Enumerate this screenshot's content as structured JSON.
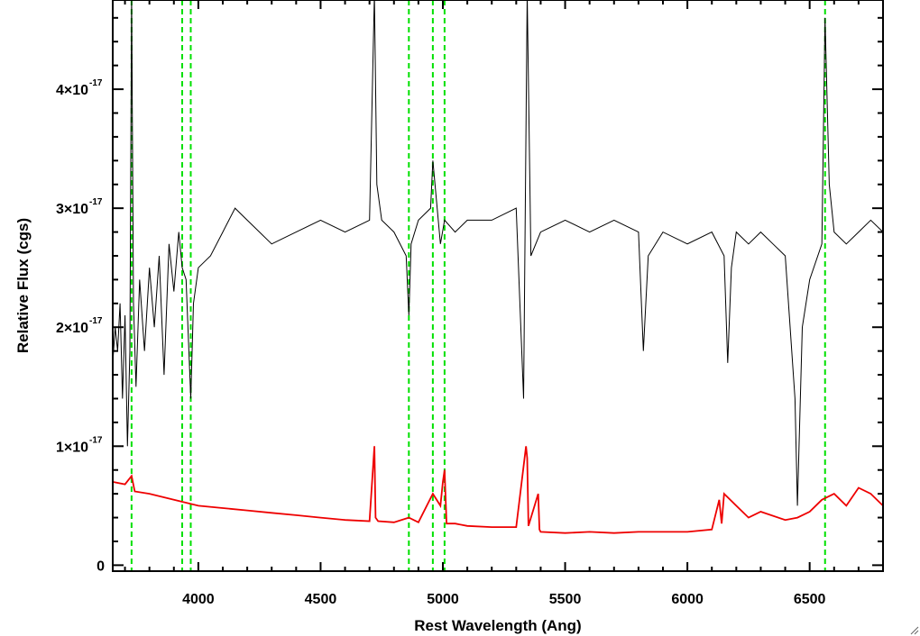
{
  "chart_data": {
    "type": "line",
    "title": "",
    "xlabel": "Rest Wavelength (Ang)",
    "ylabel": "Relative Flux (cgs)",
    "xlim": [
      3650,
      6800
    ],
    "ylim": [
      -0.05,
      4.75
    ],
    "y_scale_note": "×10^-17",
    "x_ticks": [
      {
        "value": 4000,
        "label": "4000"
      },
      {
        "value": 4500,
        "label": "4500"
      },
      {
        "value": 5000,
        "label": "5000"
      },
      {
        "value": 5500,
        "label": "5500"
      },
      {
        "value": 6000,
        "label": "6000"
      },
      {
        "value": 6500,
        "label": "6500"
      }
    ],
    "y_ticks": [
      {
        "value": 0,
        "mantissa": "0",
        "exponent": ""
      },
      {
        "value": 1,
        "mantissa": "1×10",
        "exponent": "-17"
      },
      {
        "value": 2,
        "mantissa": "2×10",
        "exponent": "-17"
      },
      {
        "value": 3,
        "mantissa": "3×10",
        "exponent": "-17"
      },
      {
        "value": 4,
        "mantissa": "4×10",
        "exponent": "-17"
      }
    ],
    "reference_lines": {
      "color": "#00e000",
      "style": "dashed",
      "x": [
        3727,
        3934,
        3969,
        4861,
        4959,
        5007,
        6563
      ]
    },
    "series": [
      {
        "color": "#000000",
        "x": [
          3650,
          3660,
          3670,
          3680,
          3690,
          3700,
          3710,
          3720,
          3727,
          3735,
          3745,
          3760,
          3780,
          3800,
          3820,
          3840,
          3860,
          3880,
          3900,
          3920,
          3934,
          3950,
          3969,
          3980,
          4000,
          4050,
          4100,
          4150,
          4200,
          4250,
          4300,
          4400,
          4500,
          4600,
          4700,
          4720,
          4730,
          4750,
          4800,
          4850,
          4861,
          4870,
          4900,
          4950,
          4959,
          4990,
          5007,
          5050,
          5100,
          5200,
          5300,
          5330,
          5345,
          5360,
          5400,
          5500,
          5600,
          5700,
          5800,
          5820,
          5840,
          5900,
          6000,
          6100,
          6150,
          6165,
          6180,
          6200,
          6250,
          6300,
          6350,
          6400,
          6420,
          6440,
          6450,
          6470,
          6500,
          6550,
          6563,
          6580,
          6600,
          6650,
          6700,
          6750,
          6800
        ],
        "y": [
          1.7,
          2.0,
          1.8,
          2.2,
          1.4,
          2.1,
          1.0,
          1.8,
          4.8,
          2.2,
          1.5,
          2.4,
          1.8,
          2.5,
          2.0,
          2.6,
          1.6,
          2.7,
          2.3,
          2.8,
          2.5,
          2.4,
          1.4,
          2.2,
          2.5,
          2.6,
          2.8,
          3.0,
          2.9,
          2.8,
          2.7,
          2.8,
          2.9,
          2.8,
          2.9,
          4.8,
          3.2,
          2.9,
          2.8,
          2.6,
          2.1,
          2.7,
          2.9,
          3.0,
          3.4,
          2.7,
          2.9,
          2.8,
          2.9,
          2.9,
          3.0,
          1.4,
          4.8,
          2.6,
          2.8,
          2.9,
          2.8,
          2.9,
          2.8,
          1.8,
          2.6,
          2.8,
          2.7,
          2.8,
          2.6,
          1.7,
          2.5,
          2.8,
          2.7,
          2.8,
          2.7,
          2.6,
          2.0,
          1.4,
          0.5,
          2.0,
          2.4,
          2.7,
          4.6,
          3.2,
          2.8,
          2.7,
          2.8,
          2.9,
          2.8
        ]
      },
      {
        "color": "#ee0000",
        "x": [
          3650,
          3700,
          3727,
          3740,
          3800,
          3900,
          4000,
          4100,
          4200,
          4300,
          4400,
          4500,
          4600,
          4700,
          4720,
          4725,
          4735,
          4800,
          4861,
          4900,
          4959,
          4990,
          5000,
          5007,
          5015,
          5050,
          5100,
          5200,
          5300,
          5340,
          5345,
          5350,
          5390,
          5395,
          5400,
          5500,
          5600,
          5700,
          5800,
          5900,
          6000,
          6100,
          6130,
          6140,
          6150,
          6200,
          6250,
          6300,
          6400,
          6450,
          6500,
          6550,
          6600,
          6650,
          6700,
          6750,
          6800
        ],
        "y": [
          0.7,
          0.68,
          0.75,
          0.62,
          0.6,
          0.55,
          0.5,
          0.48,
          0.46,
          0.44,
          0.42,
          0.4,
          0.38,
          0.37,
          1.0,
          0.4,
          0.37,
          0.36,
          0.4,
          0.36,
          0.6,
          0.5,
          0.7,
          0.8,
          0.35,
          0.35,
          0.33,
          0.32,
          0.32,
          1.0,
          0.9,
          0.33,
          0.6,
          0.3,
          0.28,
          0.27,
          0.28,
          0.27,
          0.28,
          0.28,
          0.28,
          0.3,
          0.55,
          0.35,
          0.6,
          0.5,
          0.4,
          0.45,
          0.38,
          0.4,
          0.45,
          0.55,
          0.6,
          0.5,
          0.65,
          0.6,
          0.5
        ]
      }
    ]
  }
}
